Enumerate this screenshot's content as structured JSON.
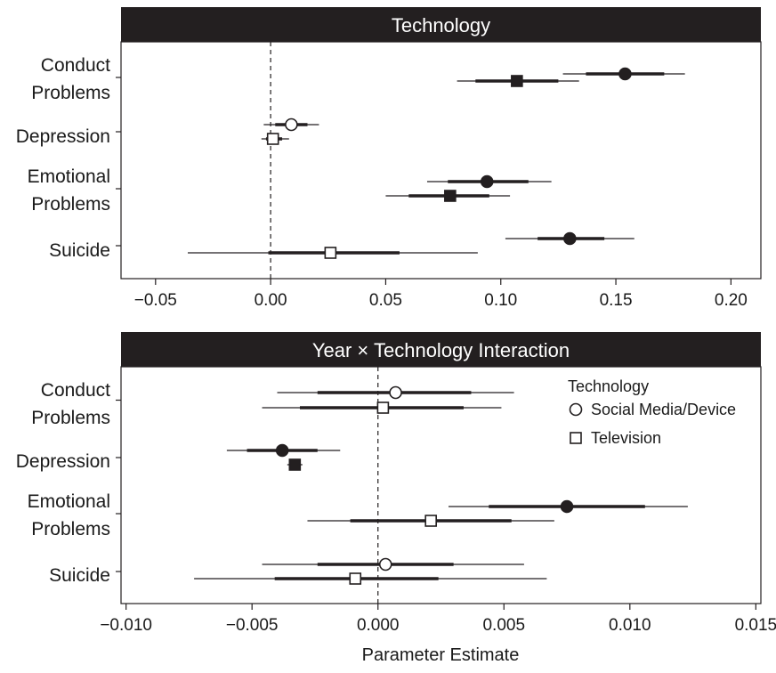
{
  "figure": {
    "xlabel": "Parameter Estimate",
    "legend": {
      "title": "Technology",
      "placement": "top-right of bottom panel",
      "items": [
        {
          "label": "Social Media/Device",
          "marker": "circle"
        },
        {
          "label": "Television",
          "marker": "square"
        }
      ]
    }
  },
  "chart_data": [
    {
      "type": "forest",
      "title": "Technology",
      "xlim": [
        -0.065,
        0.213
      ],
      "xticks": [
        "−0.05",
        "0.00",
        "0.05",
        "0.10",
        "0.15",
        "0.20"
      ],
      "xtick_values": [
        -0.05,
        0.0,
        0.05,
        0.1,
        0.15,
        0.2
      ],
      "reference_line": 0,
      "categories": [
        {
          "lines": [
            "Conduct",
            "Problems"
          ]
        },
        {
          "lines": [
            "Depression"
          ]
        },
        {
          "lines": [
            "Emotional",
            "Problems"
          ]
        },
        {
          "lines": [
            "Suicide"
          ]
        }
      ],
      "series": [
        {
          "name": "Social Media/Device",
          "marker": "circle",
          "points": [
            {
              "est": 0.154,
              "inner": [
                0.137,
                0.171
              ],
              "outer": [
                0.127,
                0.18
              ],
              "filled": true
            },
            {
              "est": 0.009,
              "inner": [
                0.002,
                0.016
              ],
              "outer": [
                -0.003,
                0.021
              ],
              "filled": false
            },
            {
              "est": 0.094,
              "inner": [
                0.077,
                0.112
              ],
              "outer": [
                0.068,
                0.122
              ],
              "filled": true
            },
            {
              "est": 0.13,
              "inner": [
                0.116,
                0.145
              ],
              "outer": [
                0.102,
                0.158
              ],
              "filled": true
            }
          ]
        },
        {
          "name": "Television",
          "marker": "square",
          "points": [
            {
              "est": 0.107,
              "inner": [
                0.089,
                0.125
              ],
              "outer": [
                0.081,
                0.134
              ],
              "filled": true
            },
            {
              "est": 0.001,
              "inner": [
                -0.002,
                0.005
              ],
              "outer": [
                -0.004,
                0.008
              ],
              "filled": false
            },
            {
              "est": 0.078,
              "inner": [
                0.06,
                0.095
              ],
              "outer": [
                0.05,
                0.104
              ],
              "filled": true
            },
            {
              "est": 0.026,
              "inner": [
                -0.001,
                0.056
              ],
              "outer": [
                -0.036,
                0.09
              ],
              "filled": false
            }
          ]
        }
      ]
    },
    {
      "type": "forest",
      "title": "Year × Technology Interaction",
      "xlim": [
        -0.0102,
        0.0152
      ],
      "xticks": [
        "−0.010",
        "−0.005",
        "0.000",
        "0.005",
        "0.010",
        "0.015"
      ],
      "xtick_values": [
        -0.01,
        -0.005,
        0.0,
        0.005,
        0.01,
        0.015
      ],
      "reference_line": 0,
      "categories": [
        {
          "lines": [
            "Conduct",
            "Problems"
          ]
        },
        {
          "lines": [
            "Depression"
          ]
        },
        {
          "lines": [
            "Emotional",
            "Problems"
          ]
        },
        {
          "lines": [
            "Suicide"
          ]
        }
      ],
      "series": [
        {
          "name": "Social Media/Device",
          "marker": "circle",
          "points": [
            {
              "est": 0.0007,
              "inner": [
                -0.0024,
                0.0037
              ],
              "outer": [
                -0.004,
                0.0054
              ],
              "filled": false
            },
            {
              "est": -0.0038,
              "inner": [
                -0.0052,
                -0.0024
              ],
              "outer": [
                -0.006,
                -0.0015
              ],
              "filled": true
            },
            {
              "est": 0.0075,
              "inner": [
                0.0044,
                0.0106
              ],
              "outer": [
                0.0028,
                0.0123
              ],
              "filled": true
            },
            {
              "est": 0.0003,
              "inner": [
                -0.0024,
                0.003
              ],
              "outer": [
                -0.0046,
                0.0058
              ],
              "filled": false
            }
          ]
        },
        {
          "name": "Television",
          "marker": "square",
          "points": [
            {
              "est": 0.0002,
              "inner": [
                -0.0031,
                0.0034
              ],
              "outer": [
                -0.0046,
                0.0049
              ],
              "filled": false
            },
            {
              "est": -0.0033,
              "inner": [
                -0.0035,
                -0.0031
              ],
              "outer": [
                -0.0036,
                -0.003
              ],
              "filled": true
            },
            {
              "est": 0.0021,
              "inner": [
                -0.0011,
                0.0053
              ],
              "outer": [
                -0.0028,
                0.007
              ],
              "filled": false
            },
            {
              "est": -0.0009,
              "inner": [
                -0.0041,
                0.0024
              ],
              "outer": [
                -0.0073,
                0.0067
              ],
              "filled": false
            }
          ]
        }
      ]
    }
  ]
}
